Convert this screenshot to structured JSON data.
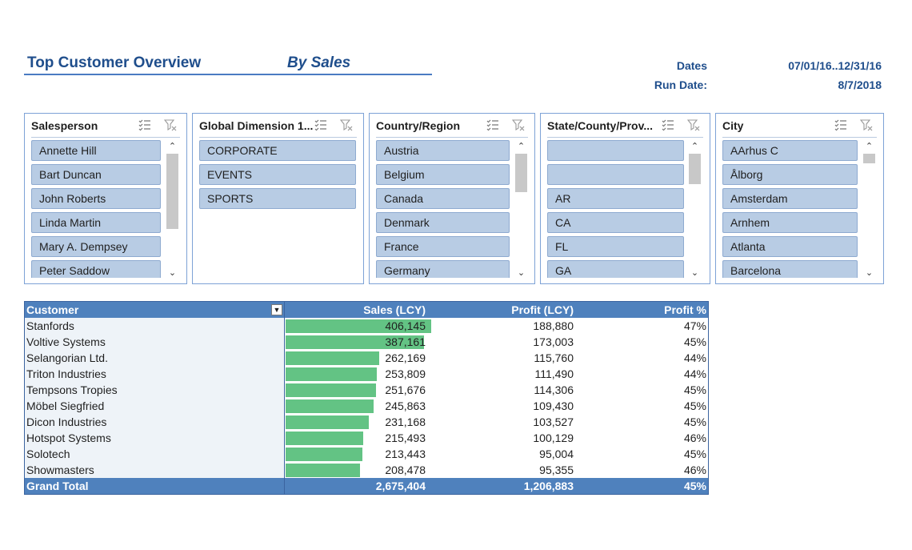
{
  "header": {
    "title": "Top Customer Overview",
    "subtitle": "By Sales",
    "dates_label": "Dates",
    "dates_value": "07/01/16..12/31/16",
    "run_date_label": "Run Date:",
    "run_date_value": "8/7/2018"
  },
  "slicers": [
    {
      "title": "Salesperson",
      "items": [
        "Annette Hill",
        "Bart Duncan",
        "John Roberts",
        "Linda Martin",
        "Mary A. Dempsey",
        "Peter Saddow"
      ]
    },
    {
      "title": "Global Dimension 1...",
      "items": [
        "CORPORATE",
        "EVENTS",
        "SPORTS"
      ]
    },
    {
      "title": "Country/Region",
      "items": [
        "Austria",
        "Belgium",
        "Canada",
        "Denmark",
        "France",
        "Germany"
      ]
    },
    {
      "title": "State/County/Prov...",
      "items": [
        "",
        "",
        "AR",
        "CA",
        "FL",
        "GA"
      ]
    },
    {
      "title": "City",
      "items": [
        "AArhus C",
        "Ålborg",
        "Amsterdam",
        "Arnhem",
        "Atlanta",
        "Barcelona"
      ]
    }
  ],
  "icons": {
    "multi_select": "multi-select-icon",
    "clear_filter": "clear-filter-icon",
    "scroll_up": "chevron-up-icon",
    "scroll_down": "chevron-down-icon",
    "column_filter": "filter-icon"
  },
  "colors": {
    "accent": "#1f4e8c",
    "header_fill": "#4f81bd",
    "slicer_item": "#b8cce4",
    "data_bar": "#63c384"
  },
  "table": {
    "headers": {
      "customer": "Customer",
      "sales": "Sales (LCY)",
      "profit": "Profit (LCY)",
      "profit_pct": "Profit %"
    },
    "rows": [
      {
        "customer": "Stanfords",
        "sales": "406,145",
        "profit": "188,880",
        "pct": "47%",
        "sales_value": 406145
      },
      {
        "customer": "Voltive Systems",
        "sales": "387,161",
        "profit": "173,003",
        "pct": "45%",
        "sales_value": 387161
      },
      {
        "customer": "Selangorian Ltd.",
        "sales": "262,169",
        "profit": "115,760",
        "pct": "44%",
        "sales_value": 262169
      },
      {
        "customer": "Triton Industries",
        "sales": "253,809",
        "profit": "111,490",
        "pct": "44%",
        "sales_value": 253809
      },
      {
        "customer": "Tempsons Tropies",
        "sales": "251,676",
        "profit": "114,306",
        "pct": "45%",
        "sales_value": 251676
      },
      {
        "customer": "Möbel Siegfried",
        "sales": "245,863",
        "profit": "109,430",
        "pct": "45%",
        "sales_value": 245863
      },
      {
        "customer": "Dicon Industries",
        "sales": "231,168",
        "profit": "103,527",
        "pct": "45%",
        "sales_value": 231168
      },
      {
        "customer": "Hotspot Systems",
        "sales": "215,493",
        "profit": "100,129",
        "pct": "46%",
        "sales_value": 215493
      },
      {
        "customer": "Solotech",
        "sales": "213,443",
        "profit": "95,004",
        "pct": "45%",
        "sales_value": 213443
      },
      {
        "customer": "Showmasters",
        "sales": "208,478",
        "profit": "95,355",
        "pct": "46%",
        "sales_value": 208478
      }
    ],
    "total": {
      "label": "Grand Total",
      "sales": "2,675,404",
      "profit": "1,206,883",
      "pct": "45%"
    }
  }
}
